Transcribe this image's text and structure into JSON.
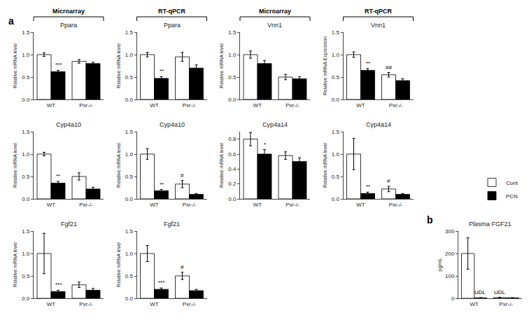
{
  "chart_data": [
    {
      "type": "bar",
      "title": "Ppara",
      "ylabel": "Relative mRNA level",
      "header": "Microarray",
      "panel": "a",
      "categories": [
        "WT",
        "Pxr-/-"
      ],
      "series": [
        {
          "name": "Cont",
          "color": "white",
          "values": [
            1.0,
            0.85
          ],
          "errors": [
            0.04,
            0.04
          ]
        },
        {
          "name": "PCN",
          "color": "black",
          "values": [
            0.62,
            0.8
          ],
          "errors": [
            0.03,
            0.03
          ]
        }
      ],
      "annotations": [
        {
          "text": "***",
          "x": "WT",
          "series": "PCN"
        }
      ],
      "ylim": [
        0,
        1.5
      ],
      "yticks": [
        {
          "value": 0.0,
          "label": "0.0"
        },
        0.5,
        {
          "value": 1.0,
          "label": "1.0"
        },
        1.5
      ],
      "grid": false
    },
    {
      "type": "bar",
      "title": "Ppara",
      "ylabel": "Relative mRNA level",
      "header": "RT-qPCR",
      "categories": [
        "WT",
        "Pxr-/-"
      ],
      "series": [
        {
          "name": "Cont",
          "color": "white",
          "values": [
            1.0,
            0.95
          ],
          "errors": [
            0.05,
            0.1
          ]
        },
        {
          "name": "PCN",
          "color": "black",
          "values": [
            0.47,
            0.7
          ],
          "errors": [
            0.04,
            0.07
          ]
        }
      ],
      "annotations": [
        {
          "text": "**",
          "x": "WT",
          "series": "PCN"
        }
      ],
      "ylim": [
        0,
        1.5
      ],
      "yticks": [
        {
          "value": 0.0,
          "label": "0.0"
        },
        0.5,
        {
          "value": 1.0,
          "label": "1.0"
        },
        1.5
      ],
      "grid": false
    },
    {
      "type": "bar",
      "title": "Vnn1",
      "ylabel": "Relative mRNA level",
      "header": "Microarray",
      "categories": [
        "WT",
        "Pxr-/-"
      ],
      "series": [
        {
          "name": "Cont",
          "color": "white",
          "values": [
            1.0,
            0.5
          ],
          "errors": [
            0.08,
            0.06
          ]
        },
        {
          "name": "PCN",
          "color": "black",
          "values": [
            0.8,
            0.46
          ],
          "errors": [
            0.07,
            0.05
          ]
        }
      ],
      "annotations": [],
      "ylim": [
        0,
        1.5
      ],
      "yticks": [
        {
          "value": 0.0,
          "label": "0.0"
        },
        0.5,
        {
          "value": 1.0,
          "label": "1.0"
        },
        1.5
      ],
      "grid": false
    },
    {
      "type": "bar",
      "title": "Vnn1",
      "ylabel": "Relative mRNA Expression",
      "header": "RT-qPCR",
      "categories": [
        "WT",
        "Pxr-/-"
      ],
      "series": [
        {
          "name": "Cont",
          "color": "white",
          "values": [
            1.0,
            0.55
          ],
          "errors": [
            0.06,
            0.05
          ]
        },
        {
          "name": "PCN",
          "color": "black",
          "values": [
            0.65,
            0.42
          ],
          "errors": [
            0.04,
            0.04
          ]
        }
      ],
      "annotations": [
        {
          "text": "**",
          "x": "WT",
          "series": "PCN"
        },
        {
          "text": "##",
          "x": "Pxr-/-",
          "series": "Cont"
        }
      ],
      "ylim": [
        0,
        1.5
      ],
      "yticks": [
        {
          "value": 0.0,
          "label": "0.0"
        },
        0.5,
        {
          "value": 1.0,
          "label": "1.0"
        },
        1.5
      ],
      "grid": false
    },
    {
      "type": "bar",
      "title": "Cyp4a10",
      "ylabel": "Relative mRNA level",
      "categories": [
        "WT",
        "Pxr-/-"
      ],
      "series": [
        {
          "name": "Cont",
          "color": "white",
          "values": [
            1.0,
            0.5
          ],
          "errors": [
            0.04,
            0.08
          ]
        },
        {
          "name": "PCN",
          "color": "black",
          "values": [
            0.35,
            0.22
          ],
          "errors": [
            0.04,
            0.04
          ]
        }
      ],
      "annotations": [
        {
          "text": "**",
          "x": "WT",
          "series": "PCN"
        }
      ],
      "ylim": [
        0,
        1.5
      ],
      "yticks": [
        {
          "value": 0.0,
          "label": "0.0"
        },
        0.5,
        {
          "value": 1.0,
          "label": "1.0"
        },
        1.5
      ],
      "grid": false
    },
    {
      "type": "bar",
      "title": "Cyp4a10",
      "ylabel": "Relative mRNA level",
      "categories": [
        "WT",
        "Pxr-/-"
      ],
      "series": [
        {
          "name": "Cont",
          "color": "white",
          "values": [
            1.0,
            0.33
          ],
          "errors": [
            0.12,
            0.08
          ]
        },
        {
          "name": "PCN",
          "color": "black",
          "values": [
            0.18,
            0.1
          ],
          "errors": [
            0.03,
            0.02
          ]
        }
      ],
      "annotations": [
        {
          "text": "**",
          "x": "WT",
          "series": "PCN"
        },
        {
          "text": "#",
          "x": "Pxr-/-",
          "series": "Cont"
        }
      ],
      "ylim": [
        0,
        1.5
      ],
      "yticks": [
        {
          "value": 0.0,
          "label": "0.0"
        },
        0.5,
        {
          "value": 1.0,
          "label": "1.0"
        },
        1.5
      ],
      "grid": false
    },
    {
      "type": "bar",
      "title": "Cyp4a14",
      "ylabel": "Relative mRNA level",
      "categories": [
        "WT",
        "Pxr-/-"
      ],
      "series": [
        {
          "name": "Cont",
          "color": "white",
          "values": [
            0.8,
            0.58
          ],
          "errors": [
            0.09,
            0.05
          ]
        },
        {
          "name": "PCN",
          "color": "black",
          "values": [
            0.6,
            0.5
          ],
          "errors": [
            0.06,
            0.05
          ]
        }
      ],
      "annotations": [
        {
          "text": "*",
          "x": "WT",
          "series": "PCN"
        }
      ],
      "ylim": [
        0,
        0.9
      ],
      "yticks": [
        {
          "value": 0.0,
          "label": "0.0"
        },
        0.2,
        0.4,
        0.6,
        0.8
      ],
      "grid": false
    },
    {
      "type": "bar",
      "title": "Cyp4a14",
      "ylabel": "Relative mRNA level",
      "categories": [
        "WT",
        "Pxr-/-"
      ],
      "series": [
        {
          "name": "Cont",
          "color": "white",
          "values": [
            1.0,
            0.22
          ],
          "errors": [
            0.35,
            0.06
          ]
        },
        {
          "name": "PCN",
          "color": "black",
          "values": [
            0.12,
            0.1
          ],
          "errors": [
            0.03,
            0.02
          ]
        }
      ],
      "annotations": [
        {
          "text": "**",
          "x": "WT",
          "series": "PCN"
        },
        {
          "text": "#",
          "x": "Pxr-/-",
          "series": "Cont"
        }
      ],
      "ylim": [
        0,
        1.5
      ],
      "yticks": [
        {
          "value": 0.0,
          "label": "0.0"
        },
        0.5,
        {
          "value": 1.0,
          "label": "1.0"
        },
        1.5
      ],
      "grid": false
    },
    {
      "type": "bar",
      "title": "Fgf21",
      "ylabel": "Relative mRNA level",
      "categories": [
        "WT",
        "Pxr-/-"
      ],
      "series": [
        {
          "name": "Cont",
          "color": "white",
          "values": [
            1.0,
            0.3
          ],
          "errors": [
            0.45,
            0.06
          ]
        },
        {
          "name": "PCN",
          "color": "black",
          "values": [
            0.15,
            0.18
          ],
          "errors": [
            0.03,
            0.04
          ]
        }
      ],
      "annotations": [
        {
          "text": "***",
          "x": "WT",
          "series": "PCN"
        }
      ],
      "ylim": [
        0,
        1.5
      ],
      "yticks": [
        {
          "value": 0.0,
          "label": "0.0"
        },
        0.5,
        {
          "value": 1.0,
          "label": "1.0"
        },
        1.5
      ],
      "grid": false
    },
    {
      "type": "bar",
      "title": "Fgf21",
      "ylabel": "Relative mRNA level",
      "categories": [
        "WT",
        "Pxr-/-"
      ],
      "series": [
        {
          "name": "Cont",
          "color": "white",
          "values": [
            1.0,
            0.5
          ],
          "errors": [
            0.18,
            0.08
          ]
        },
        {
          "name": "PCN",
          "color": "black",
          "values": [
            0.2,
            0.17
          ],
          "errors": [
            0.03,
            0.03
          ]
        }
      ],
      "annotations": [
        {
          "text": "***",
          "x": "WT",
          "series": "PCN"
        },
        {
          "text": "#",
          "x": "Pxr-/-",
          "series": "Cont"
        }
      ],
      "ylim": [
        0,
        1.5
      ],
      "yticks": [
        {
          "value": 0.0,
          "label": "0.0"
        },
        0.5,
        {
          "value": 1.0,
          "label": "1.0"
        },
        1.5
      ],
      "grid": false
    },
    {
      "type": "bar",
      "title": "Plasma FGF21",
      "ylabel": "pg/mL",
      "panel": "b",
      "legend": "upper right",
      "categories": [
        "WT",
        "Pxr-/-"
      ],
      "series": [
        {
          "name": "Cont",
          "color": "white",
          "values": [
            200,
            3
          ],
          "errors": [
            70,
            1
          ]
        },
        {
          "name": "PCN",
          "color": "black",
          "values": [
            2,
            2
          ],
          "errors": [
            1,
            1
          ]
        }
      ],
      "annotations": [
        {
          "text": "UDL",
          "x": "WT",
          "series": "PCN"
        },
        {
          "text": "UDL",
          "x": "Pxr-/-",
          "series": "Cont"
        }
      ],
      "ylim": [
        0,
        300
      ],
      "yticks": [
        0,
        100,
        200,
        300
      ],
      "grid": false
    }
  ]
}
